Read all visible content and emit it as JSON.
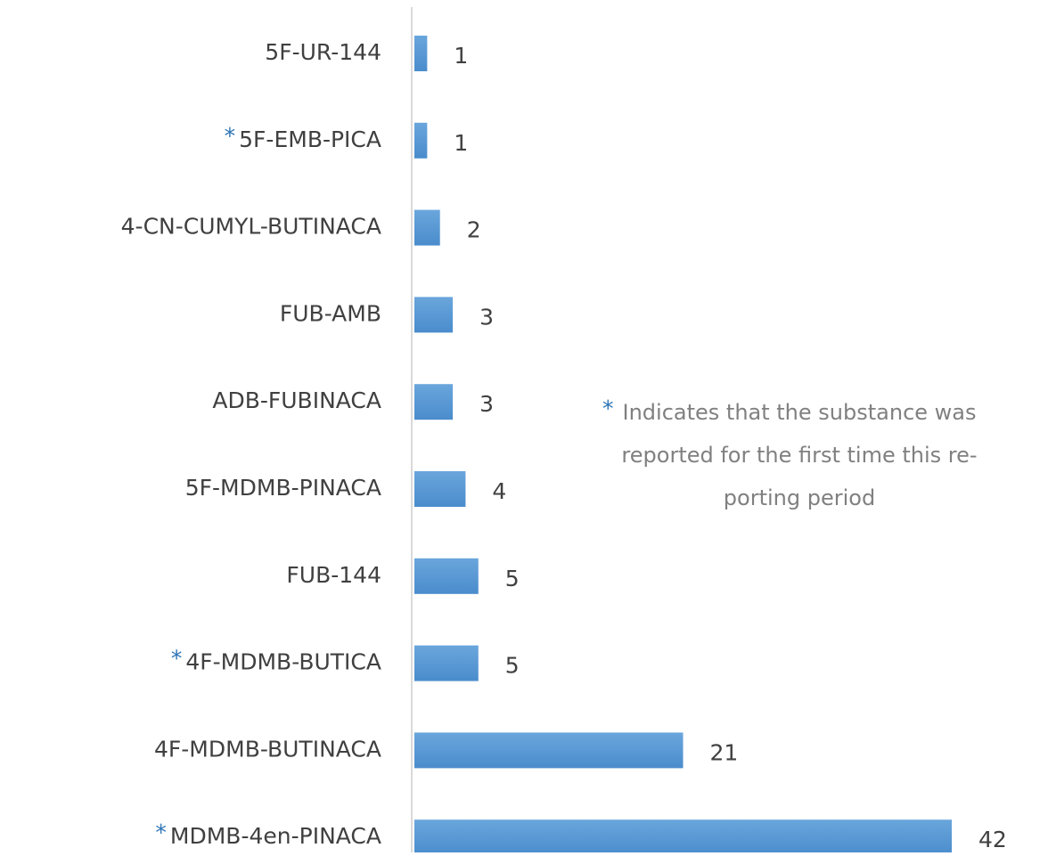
{
  "chart_data": {
    "type": "barh",
    "categories": [
      "5F-UR-144",
      "5F-EMB-PICA",
      "4-CN-CUMYL-BUTINACA",
      "FUB-AMB",
      "ADB-FUBINACA",
      "5F-MDMB-PINACA",
      "FUB-144",
      "4F-MDMB-BUTICA",
      "4F-MDMB-BUTINACA",
      "MDMB-4en-PINACA"
    ],
    "values": [
      1,
      1,
      2,
      3,
      3,
      4,
      5,
      5,
      21,
      42
    ],
    "flags": [
      null,
      "*",
      null,
      null,
      null,
      null,
      null,
      "*",
      null,
      "*"
    ],
    "color": "#5b9bd5",
    "flag_color": "#2e75b6",
    "annotation": {
      "marker": "*",
      "lines": [
        "Indicates that the substance was",
        "reported for the first time this re-",
        "porting period"
      ]
    }
  }
}
